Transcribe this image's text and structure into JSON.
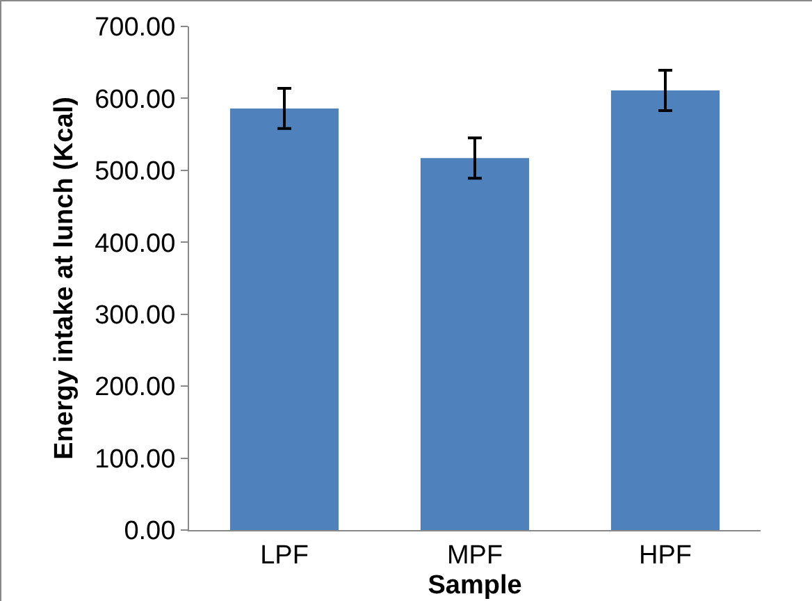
{
  "chart_data": {
    "type": "bar",
    "xlabel": "Sample",
    "ylabel": "Energy intake at lunch (Kcal)",
    "categories": [
      "LPF",
      "MPF",
      "HPF"
    ],
    "values": [
      586,
      517,
      611
    ],
    "errors": [
      28,
      28,
      28
    ],
    "color": "#4f81bd",
    "ylim": [
      0,
      700
    ],
    "yticks": [
      {
        "value": 0,
        "label": "0.00"
      },
      {
        "value": 100,
        "label": "100.00"
      },
      {
        "value": 200,
        "label": "200.00"
      },
      {
        "value": 300,
        "label": "300.00"
      },
      {
        "value": 400,
        "label": "400.00"
      },
      {
        "value": 500,
        "label": "500.00"
      },
      {
        "value": 600,
        "label": "600.00"
      },
      {
        "value": 700,
        "label": "700.00"
      }
    ],
    "grid": false
  }
}
